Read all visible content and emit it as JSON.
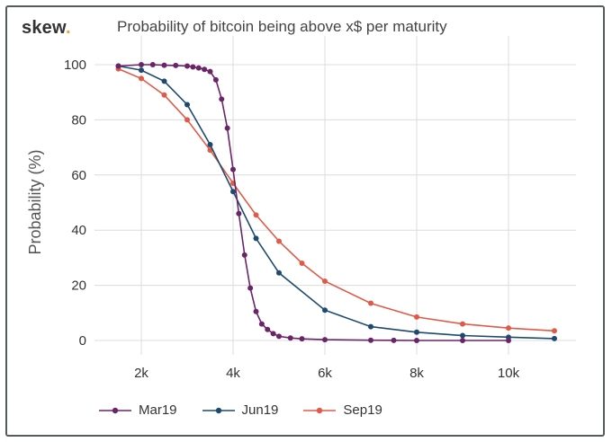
{
  "header": {
    "brand": "skew",
    "brand_dot": ".",
    "brand_dot_color": "#f0a030"
  },
  "chart_data": {
    "type": "line",
    "title": "Probability of bitcoin being above x$ per maturity",
    "xlabel": "",
    "ylabel": "Probability (%)",
    "xlim": [
      1500,
      11000
    ],
    "ylim": [
      0,
      100
    ],
    "xticks": [
      {
        "value": 2000,
        "label": "2k"
      },
      {
        "value": 4000,
        "label": "4k"
      },
      {
        "value": 6000,
        "label": "6k"
      },
      {
        "value": 8000,
        "label": "8k"
      },
      {
        "value": 10000,
        "label": "10k"
      }
    ],
    "yticks": [
      {
        "value": 0,
        "label": "0"
      },
      {
        "value": 20,
        "label": "20"
      },
      {
        "value": 40,
        "label": "40"
      },
      {
        "value": 60,
        "label": "60"
      },
      {
        "value": 80,
        "label": "80"
      },
      {
        "value": 100,
        "label": "100"
      }
    ],
    "grid": true,
    "legend_position": "bottom",
    "series": [
      {
        "name": "Mar19",
        "color": "#6a2468",
        "points": [
          [
            1500,
            99.5
          ],
          [
            2000,
            100
          ],
          [
            2250,
            100
          ],
          [
            2500,
            99.8
          ],
          [
            2750,
            99.7
          ],
          [
            3000,
            99.5
          ],
          [
            3125,
            99.2
          ],
          [
            3250,
            98.8
          ],
          [
            3375,
            98.3
          ],
          [
            3500,
            97.5
          ],
          [
            3625,
            94.5
          ],
          [
            3750,
            87.5
          ],
          [
            3875,
            77
          ],
          [
            4000,
            62
          ],
          [
            4125,
            46
          ],
          [
            4250,
            31
          ],
          [
            4375,
            19
          ],
          [
            4500,
            10.5
          ],
          [
            4625,
            6
          ],
          [
            4750,
            4
          ],
          [
            4875,
            2.5
          ],
          [
            5000,
            1.5
          ],
          [
            5250,
            0.9
          ],
          [
            5500,
            0.6
          ],
          [
            6000,
            0.3
          ],
          [
            7000,
            0.1
          ],
          [
            7500,
            0.05
          ],
          [
            8000,
            0
          ],
          [
            9000,
            0
          ],
          [
            10000,
            0
          ]
        ]
      },
      {
        "name": "Jun19",
        "color": "#1d4a6e",
        "points": [
          [
            1500,
            99.5
          ],
          [
            2000,
            98
          ],
          [
            2500,
            94
          ],
          [
            3000,
            85.5
          ],
          [
            3500,
            71
          ],
          [
            4000,
            54
          ],
          [
            4500,
            37
          ],
          [
            5000,
            24.5
          ],
          [
            6000,
            11
          ],
          [
            7000,
            5
          ],
          [
            8000,
            3
          ],
          [
            9000,
            1.8
          ],
          [
            10000,
            1.2
          ],
          [
            11000,
            0.7
          ]
        ]
      },
      {
        "name": "Sep19",
        "color": "#e05a48",
        "points": [
          [
            1500,
            98.5
          ],
          [
            2000,
            95
          ],
          [
            2500,
            89
          ],
          [
            3000,
            80
          ],
          [
            3500,
            69
          ],
          [
            4000,
            57
          ],
          [
            4500,
            45.5
          ],
          [
            5000,
            36
          ],
          [
            5500,
            28
          ],
          [
            6000,
            21.5
          ],
          [
            7000,
            13.5
          ],
          [
            8000,
            8.5
          ],
          [
            9000,
            6
          ],
          [
            10000,
            4.5
          ],
          [
            11000,
            3.5
          ]
        ]
      }
    ]
  }
}
